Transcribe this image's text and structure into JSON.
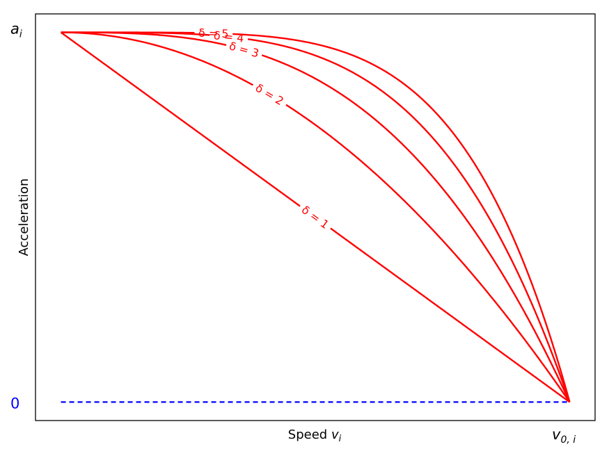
{
  "chart_data": {
    "type": "line",
    "title": "",
    "xlabel": "Speed v_i",
    "xlabel_main": "Speed ",
    "xlabel_var": "v",
    "xlabel_sub": "i",
    "ylabel": "Acceleration",
    "xlim": [
      -0.05,
      1.05
    ],
    "ylim": [
      -0.05,
      1.05
    ],
    "grid": false,
    "legend": "none",
    "tick_labels": {
      "y_top": {
        "var": "a",
        "sub": "i"
      },
      "y_zero": "0",
      "x_right": {
        "var": "v",
        "sub": "0, i"
      }
    },
    "colors": {
      "curves": "#ff0000",
      "baseline": "#0000ff",
      "zero_tick": "#0000ff"
    },
    "formula": "a = 1 - (v/v0)^delta",
    "series": [
      {
        "delta": 1,
        "label": "δ = 1",
        "label_at_x": 0.5
      },
      {
        "delta": 2,
        "label": "δ = 2",
        "label_at_x": 0.41
      },
      {
        "delta": 3,
        "label": "δ = 3",
        "label_at_x": 0.36
      },
      {
        "delta": 4,
        "label": "δ = 4",
        "label_at_x": 0.33
      },
      {
        "delta": 5,
        "label": "δ = 5",
        "label_at_x": 0.3
      }
    ],
    "baseline": {
      "y": 0,
      "x": [
        0,
        1
      ],
      "style": "dashed"
    }
  }
}
